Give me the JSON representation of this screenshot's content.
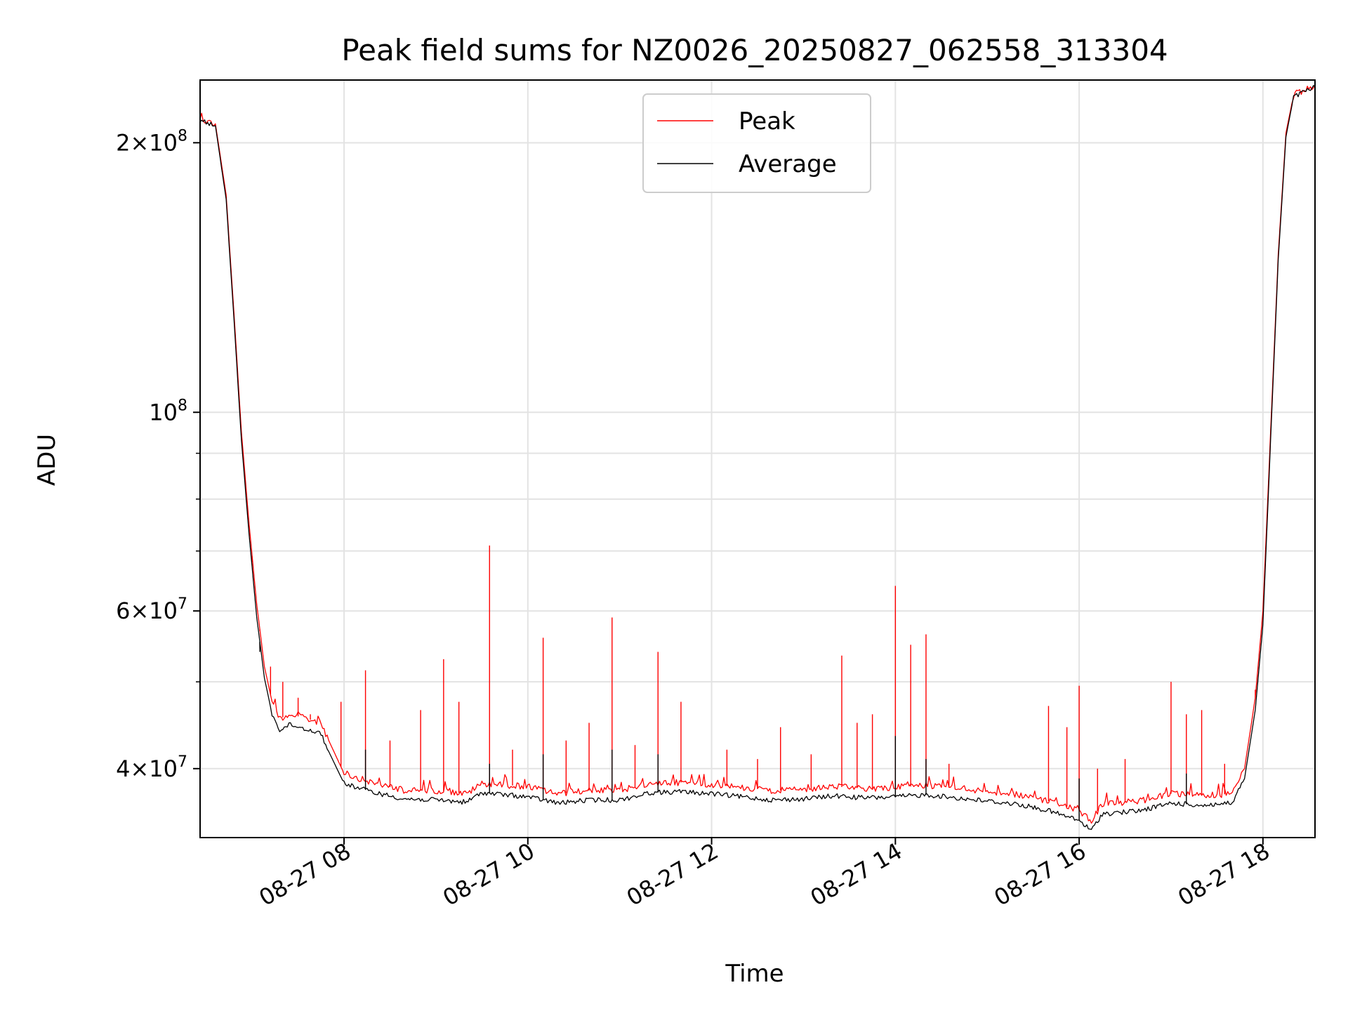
{
  "chart_data": {
    "type": "line",
    "title": "Peak field sums for NZ0026_20250827_062558_313304",
    "xlabel": "Time",
    "ylabel": "ADU",
    "yscale": "log",
    "ylim": [
      33500000,
      235000000
    ],
    "xlim": [
      "08-27 06:26",
      "08-27 18:34"
    ],
    "grid": true,
    "legend_position": "upper-center",
    "x_ticks": [
      {
        "time": "08-27 08:00",
        "label": "08-27 08"
      },
      {
        "time": "08-27 10:00",
        "label": "08-27 10"
      },
      {
        "time": "08-27 12:00",
        "label": "08-27 12"
      },
      {
        "time": "08-27 14:00",
        "label": "08-27 14"
      },
      {
        "time": "08-27 16:00",
        "label": "08-27 16"
      },
      {
        "time": "08-27 18:00",
        "label": "08-27 18"
      }
    ],
    "y_major_ticks": [
      {
        "value": 40000000,
        "base": "4×10",
        "exp": "7"
      },
      {
        "value": 60000000,
        "base": "6×10",
        "exp": "7"
      },
      {
        "value": 100000000,
        "base": "10",
        "exp": "8"
      },
      {
        "value": 200000000,
        "base": "2×10",
        "exp": "8"
      }
    ],
    "y_minor_ticks": [
      50000000,
      70000000,
      80000000,
      90000000
    ],
    "series": [
      {
        "name": "Peak",
        "color": "#ff0000",
        "points": [
          [
            "08-27 06:26",
            213000000
          ],
          [
            "08-27 06:31",
            211000000
          ],
          [
            "08-27 06:36",
            210000000
          ],
          [
            "08-27 06:43",
            175000000
          ],
          [
            "08-27 06:48",
            130000000
          ],
          [
            "08-27 06:53",
            95000000
          ],
          [
            "08-27 06:58",
            75000000
          ],
          [
            "08-27 07:03",
            61000000
          ],
          [
            "08-27 07:08",
            52000000
          ],
          [
            "08-27 07:13",
            47500000
          ],
          [
            "08-27 07:18",
            45500000
          ],
          [
            "08-27 07:25",
            46000000
          ],
          [
            "08-27 07:35",
            45500000
          ],
          [
            "08-27 07:45",
            45000000
          ],
          [
            "08-27 07:50",
            43000000
          ],
          [
            "08-27 08:00",
            39500000
          ],
          [
            "08-27 08:20",
            38500000
          ],
          [
            "08-27 08:40",
            37800000
          ],
          [
            "08-27 09:00",
            37800000
          ],
          [
            "08-27 09:20",
            37500000
          ],
          [
            "08-27 09:30",
            38500000
          ],
          [
            "08-27 10:00",
            38200000
          ],
          [
            "08-27 10:20",
            37500000
          ],
          [
            "08-27 10:40",
            37800000
          ],
          [
            "08-27 11:00",
            37800000
          ],
          [
            "08-27 11:20",
            38500000
          ],
          [
            "08-27 11:40",
            38600000
          ],
          [
            "08-27 12:00",
            38400000
          ],
          [
            "08-27 12:20",
            38100000
          ],
          [
            "08-27 12:40",
            37800000
          ],
          [
            "08-27 13:00",
            37900000
          ],
          [
            "08-27 13:20",
            38200000
          ],
          [
            "08-27 13:40",
            38000000
          ],
          [
            "08-27 14:00",
            38100000
          ],
          [
            "08-27 14:20",
            38300000
          ],
          [
            "08-27 14:40",
            38000000
          ],
          [
            "08-27 15:00",
            37700000
          ],
          [
            "08-27 15:20",
            37400000
          ],
          [
            "08-27 15:40",
            36800000
          ],
          [
            "08-27 16:00",
            35900000
          ],
          [
            "08-27 16:08",
            35000000
          ],
          [
            "08-27 16:15",
            36500000
          ],
          [
            "08-27 16:40",
            36800000
          ],
          [
            "08-27 17:00",
            37500000
          ],
          [
            "08-27 17:20",
            37300000
          ],
          [
            "08-27 17:40",
            37500000
          ],
          [
            "08-27 17:48",
            40000000
          ],
          [
            "08-27 17:55",
            48000000
          ],
          [
            "08-27 18:00",
            60000000
          ],
          [
            "08-27 18:05",
            95000000
          ],
          [
            "08-27 18:10",
            150000000
          ],
          [
            "08-27 18:15",
            205000000
          ],
          [
            "08-27 18:20",
            226000000
          ],
          [
            "08-27 18:34",
            232000000
          ]
        ],
        "spikes": [
          [
            "08-27 07:00",
            68000000
          ],
          [
            "08-27 07:05",
            57000000
          ],
          [
            "08-27 07:12",
            52000000
          ],
          [
            "08-27 07:20",
            50000000
          ],
          [
            "08-27 07:30",
            48000000
          ],
          [
            "08-27 07:38",
            46000000
          ],
          [
            "08-27 07:58",
            47500000
          ],
          [
            "08-27 08:14",
            51500000
          ],
          [
            "08-27 08:30",
            43000000
          ],
          [
            "08-27 08:50",
            46500000
          ],
          [
            "08-27 09:05",
            53000000
          ],
          [
            "08-27 09:15",
            47500000
          ],
          [
            "08-27 09:35",
            71000000
          ],
          [
            "08-27 09:50",
            42000000
          ],
          [
            "08-27 10:10",
            56000000
          ],
          [
            "08-27 10:25",
            43000000
          ],
          [
            "08-27 10:40",
            45000000
          ],
          [
            "08-27 10:55",
            59000000
          ],
          [
            "08-27 11:10",
            42500000
          ],
          [
            "08-27 11:25",
            54000000
          ],
          [
            "08-27 11:40",
            47500000
          ],
          [
            "08-27 12:10",
            42000000
          ],
          [
            "08-27 12:30",
            41000000
          ],
          [
            "08-27 12:45",
            44500000
          ],
          [
            "08-27 13:05",
            41500000
          ],
          [
            "08-27 13:25",
            53500000
          ],
          [
            "08-27 13:35",
            45000000
          ],
          [
            "08-27 13:45",
            46000000
          ],
          [
            "08-27 14:00",
            64000000
          ],
          [
            "08-27 14:10",
            55000000
          ],
          [
            "08-27 14:20",
            56500000
          ],
          [
            "08-27 14:35",
            40500000
          ],
          [
            "08-27 15:40",
            47000000
          ],
          [
            "08-27 15:52",
            44500000
          ],
          [
            "08-27 16:00",
            49500000
          ],
          [
            "08-27 16:12",
            40000000
          ],
          [
            "08-27 16:30",
            41000000
          ],
          [
            "08-27 17:00",
            50000000
          ],
          [
            "08-27 17:10",
            46000000
          ],
          [
            "08-27 17:20",
            46500000
          ],
          [
            "08-27 17:35",
            40500000
          ],
          [
            "08-27 17:55",
            49000000
          ]
        ]
      },
      {
        "name": "Average",
        "color": "#000000",
        "points": [
          [
            "08-27 06:26",
            212000000
          ],
          [
            "08-27 06:31",
            210000000
          ],
          [
            "08-27 06:36",
            209000000
          ],
          [
            "08-27 06:43",
            173000000
          ],
          [
            "08-27 06:48",
            128000000
          ],
          [
            "08-27 06:53",
            93000000
          ],
          [
            "08-27 06:58",
            73000000
          ],
          [
            "08-27 07:03",
            59000000
          ],
          [
            "08-27 07:08",
            50500000
          ],
          [
            "08-27 07:13",
            46000000
          ],
          [
            "08-27 07:18",
            44200000
          ],
          [
            "08-27 07:25",
            44800000
          ],
          [
            "08-27 07:35",
            44300000
          ],
          [
            "08-27 07:45",
            43800000
          ],
          [
            "08-27 07:50",
            41800000
          ],
          [
            "08-27 08:00",
            38500000
          ],
          [
            "08-27 08:20",
            37600000
          ],
          [
            "08-27 08:40",
            37000000
          ],
          [
            "08-27 09:00",
            36900000
          ],
          [
            "08-27 09:20",
            36700000
          ],
          [
            "08-27 09:30",
            37600000
          ],
          [
            "08-27 10:00",
            37200000
          ],
          [
            "08-27 10:20",
            36600000
          ],
          [
            "08-27 10:40",
            36900000
          ],
          [
            "08-27 11:00",
            36900000
          ],
          [
            "08-27 11:20",
            37600000
          ],
          [
            "08-27 11:40",
            37700000
          ],
          [
            "08-27 12:00",
            37500000
          ],
          [
            "08-27 12:20",
            37200000
          ],
          [
            "08-27 12:40",
            36900000
          ],
          [
            "08-27 13:00",
            37000000
          ],
          [
            "08-27 13:20",
            37300000
          ],
          [
            "08-27 13:40",
            37100000
          ],
          [
            "08-27 14:00",
            37200000
          ],
          [
            "08-27 14:20",
            37400000
          ],
          [
            "08-27 14:40",
            37100000
          ],
          [
            "08-27 15:00",
            36800000
          ],
          [
            "08-27 15:20",
            36500000
          ],
          [
            "08-27 15:40",
            35900000
          ],
          [
            "08-27 16:00",
            35000000
          ],
          [
            "08-27 16:08",
            34100000
          ],
          [
            "08-27 16:15",
            35600000
          ],
          [
            "08-27 16:40",
            35900000
          ],
          [
            "08-27 17:00",
            36600000
          ],
          [
            "08-27 17:20",
            36400000
          ],
          [
            "08-27 17:40",
            36600000
          ],
          [
            "08-27 17:48",
            39000000
          ],
          [
            "08-27 17:55",
            46500000
          ],
          [
            "08-27 18:00",
            58000000
          ],
          [
            "08-27 18:05",
            93000000
          ],
          [
            "08-27 18:10",
            148000000
          ],
          [
            "08-27 18:15",
            203000000
          ],
          [
            "08-27 18:20",
            225000000
          ],
          [
            "08-27 18:34",
            231000000
          ]
        ],
        "spikes": [
          [
            "08-27 07:05",
            54000000
          ],
          [
            "08-27 08:14",
            42000000
          ],
          [
            "08-27 09:35",
            40500000
          ],
          [
            "08-27 10:10",
            41500000
          ],
          [
            "08-27 10:55",
            42000000
          ],
          [
            "08-27 11:25",
            41500000
          ],
          [
            "08-27 14:00",
            43500000
          ],
          [
            "08-27 14:20",
            41000000
          ],
          [
            "08-27 16:00",
            39000000
          ],
          [
            "08-27 17:10",
            39500000
          ]
        ]
      }
    ]
  }
}
